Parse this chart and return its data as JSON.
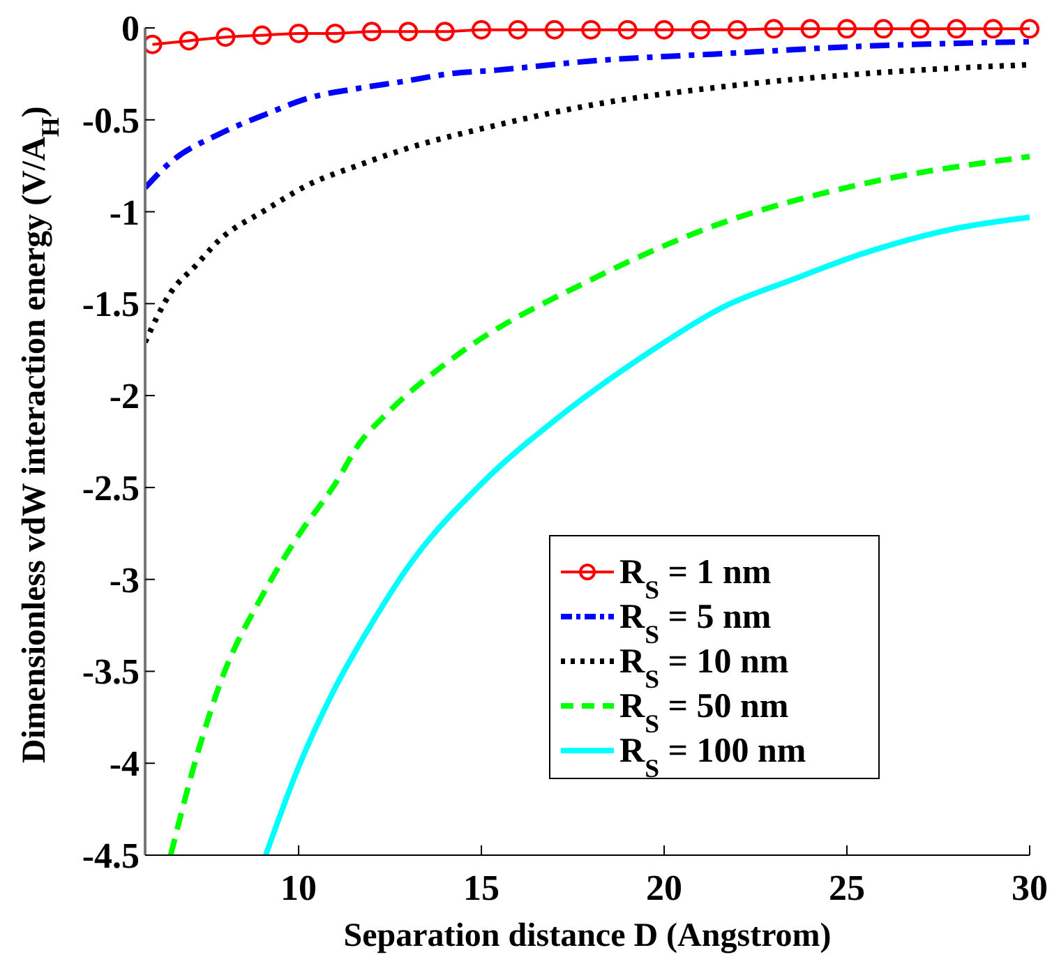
{
  "chart_data": {
    "type": "line",
    "xlabel": "Separation distance D (Angstrom)",
    "ylabel": "Dimensionless vdW interaction energy (V/A$_{H}$)",
    "xlim": [
      5.8,
      30
    ],
    "xticks": [
      10,
      15,
      20,
      25,
      30
    ],
    "ylim": [
      -4.5,
      0
    ],
    "yticks": [
      -4.5,
      -4,
      -3.5,
      -3,
      -2.5,
      -2,
      -1.5,
      -1,
      -0.5,
      0
    ],
    "grid": false,
    "legend": "bottom right",
    "series": [
      {
        "name": "R$_{S}$ = 1 nm",
        "color": "#ff0000",
        "marker": "circle",
        "line_style": "solid",
        "x": [
          6,
          7,
          8,
          9,
          10,
          11,
          12,
          13,
          14,
          15,
          16,
          17,
          18,
          19,
          20,
          21,
          22,
          23,
          24,
          25,
          26,
          27,
          28,
          29,
          30
        ],
        "values": [
          -0.09,
          -0.07,
          -0.05,
          -0.04,
          -0.03,
          -0.03,
          -0.02,
          -0.02,
          -0.02,
          -0.01,
          -0.01,
          -0.01,
          -0.01,
          -0.01,
          -0.01,
          -0.01,
          -0.01,
          -0.005,
          -0.005,
          -0.005,
          -0.005,
          -0.005,
          -0.005,
          -0.005,
          -0.005
        ]
      },
      {
        "name": "R$_{S}$ = 5 nm",
        "color": "#0000ff",
        "marker": "none",
        "line_style": "dashdot",
        "x": [
          5.8,
          6.5,
          7.8,
          9.1,
          10.3,
          11.6,
          12.9,
          14.1,
          15.4,
          18,
          21.6,
          25.4,
          30
        ],
        "values": [
          -0.87,
          -0.73,
          -0.58,
          -0.47,
          -0.38,
          -0.33,
          -0.29,
          -0.25,
          -0.23,
          -0.18,
          -0.14,
          -0.1,
          -0.075
        ]
      },
      {
        "name": "R$_{S}$ = 10 nm",
        "color": "#000000",
        "marker": "none",
        "line_style": "dotted",
        "x": [
          5.8,
          6.5,
          7.2,
          7.8,
          9.1,
          10.3,
          11.6,
          12.9,
          15.4,
          18,
          21.6,
          25.4,
          30
        ],
        "values": [
          -1.71,
          -1.44,
          -1.29,
          -1.16,
          -0.99,
          -0.85,
          -0.75,
          -0.66,
          -0.53,
          -0.42,
          -0.32,
          -0.25,
          -0.2
        ]
      },
      {
        "name": "R$_{S}$ = 50 nm",
        "color": "#00ff00",
        "marker": "none",
        "line_style": "dashed",
        "x": [
          6.5,
          7.2,
          7.9,
          9,
          10,
          11,
          11.7,
          12.3,
          14.2,
          18,
          21.6,
          25.4,
          30
        ],
        "values": [
          -4.5,
          -3.97,
          -3.54,
          -3.09,
          -2.76,
          -2.48,
          -2.25,
          -2.12,
          -1.8,
          -1.37,
          -1.06,
          -0.85,
          -0.7
        ]
      },
      {
        "name": "R$_{S}$ = 100 nm",
        "color": "#00ffff",
        "marker": "none",
        "line_style": "solid",
        "x": [
          9.1,
          10,
          11,
          12,
          13,
          15,
          17.1,
          19.7,
          21.6,
          23.5,
          25.4,
          28,
          30
        ],
        "values": [
          -4.5,
          -4.02,
          -3.59,
          -3.24,
          -2.93,
          -2.48,
          -2.12,
          -1.75,
          -1.52,
          -1.37,
          -1.23,
          -1.09,
          -1.03
        ]
      }
    ]
  }
}
